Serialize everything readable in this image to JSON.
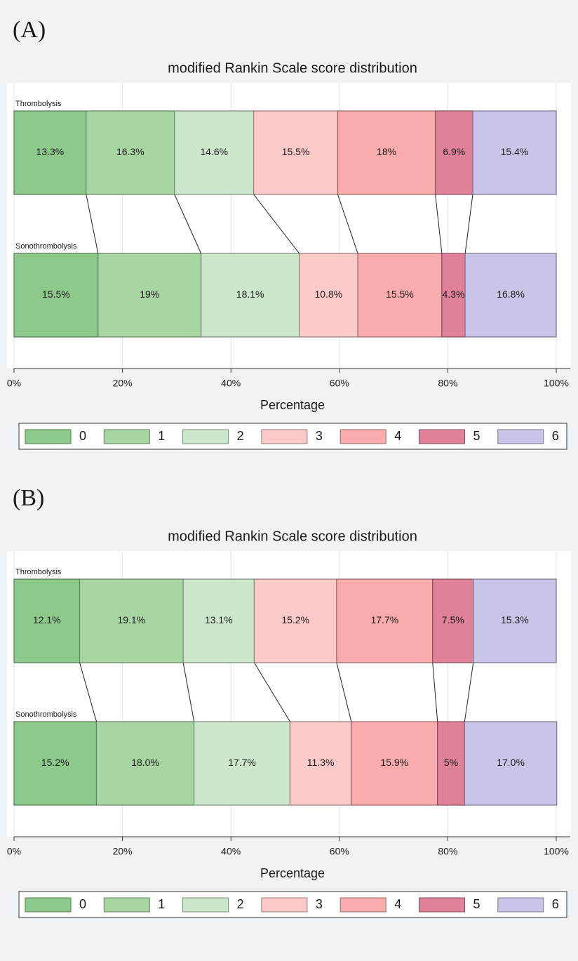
{
  "chart_data": [
    {
      "type": "stacked-barh",
      "panel_label": "(A)",
      "title": "modified Rankin Scale score distribution",
      "categories": [
        "Thrombolysis",
        "Sonothrombolysis"
      ],
      "xlabel": "Percentage",
      "xlim": [
        0,
        100
      ],
      "xticks": [
        {
          "value": 0,
          "label": "0%"
        },
        {
          "value": 20,
          "label": "20%"
        },
        {
          "value": 40,
          "label": "40%"
        },
        {
          "value": 60,
          "label": "60%"
        },
        {
          "value": 80,
          "label": "80%"
        },
        {
          "value": 100,
          "label": "100%"
        }
      ],
      "grid": true,
      "series": [
        {
          "name": "0",
          "color": "#8ec98c",
          "values": [
            13.3,
            15.5
          ],
          "value_labels": [
            "13.3%",
            "15.5%"
          ]
        },
        {
          "name": "1",
          "color": "#a8d6a3",
          "values": [
            16.3,
            19
          ],
          "value_labels": [
            "16.3%",
            "19%"
          ]
        },
        {
          "name": "2",
          "color": "#cce7cb",
          "values": [
            14.6,
            18.1
          ],
          "value_labels": [
            "14.6%",
            "18.1%"
          ]
        },
        {
          "name": "3",
          "color": "#fdcaca",
          "values": [
            15.5,
            10.8
          ],
          "value_labels": [
            "15.5%",
            "10.8%"
          ]
        },
        {
          "name": "4",
          "color": "#faabab",
          "values": [
            18,
            15.5
          ],
          "value_labels": [
            "18%",
            "15.5%"
          ]
        },
        {
          "name": "5",
          "color": "#df8199",
          "values": [
            6.9,
            4.3
          ],
          "value_labels": [
            "6.9%",
            "4.3%"
          ]
        },
        {
          "name": "6",
          "color": "#c9c5e9",
          "values": [
            15.4,
            16.8
          ],
          "value_labels": [
            "15.4%",
            "16.8%"
          ]
        }
      ]
    },
    {
      "type": "stacked-barh",
      "panel_label": "(B)",
      "title": "modified Rankin Scale score distribution",
      "categories": [
        "Thrombolysis",
        "Sonothrombolysis"
      ],
      "xlabel": "Percentage",
      "xlim": [
        0,
        100
      ],
      "xticks": [
        {
          "value": 0,
          "label": "0%"
        },
        {
          "value": 20,
          "label": "20%"
        },
        {
          "value": 40,
          "label": "40%"
        },
        {
          "value": 60,
          "label": "60%"
        },
        {
          "value": 80,
          "label": "80%"
        },
        {
          "value": 100,
          "label": "100%"
        }
      ],
      "grid": true,
      "series": [
        {
          "name": "0",
          "color": "#8ec98c",
          "values": [
            12.1,
            15.2
          ],
          "value_labels": [
            "12.1%",
            "15.2%"
          ]
        },
        {
          "name": "1",
          "color": "#a8d6a3",
          "values": [
            19.1,
            18.0
          ],
          "value_labels": [
            "19.1%",
            "18.0%"
          ]
        },
        {
          "name": "2",
          "color": "#cce7cb",
          "values": [
            13.1,
            17.7
          ],
          "value_labels": [
            "13.1%",
            "17.7%"
          ]
        },
        {
          "name": "3",
          "color": "#fdcaca",
          "values": [
            15.2,
            11.3
          ],
          "value_labels": [
            "15.2%",
            "11.3%"
          ]
        },
        {
          "name": "4",
          "color": "#faabab",
          "values": [
            17.7,
            15.9
          ],
          "value_labels": [
            "17.7%",
            "15.9%"
          ]
        },
        {
          "name": "5",
          "color": "#df8199",
          "values": [
            7.5,
            5
          ],
          "value_labels": [
            "7.5%",
            "5%"
          ]
        },
        {
          "name": "6",
          "color": "#c9c5e9",
          "values": [
            15.3,
            17.0
          ],
          "value_labels": [
            "15.3%",
            "17.0%"
          ]
        }
      ]
    }
  ]
}
